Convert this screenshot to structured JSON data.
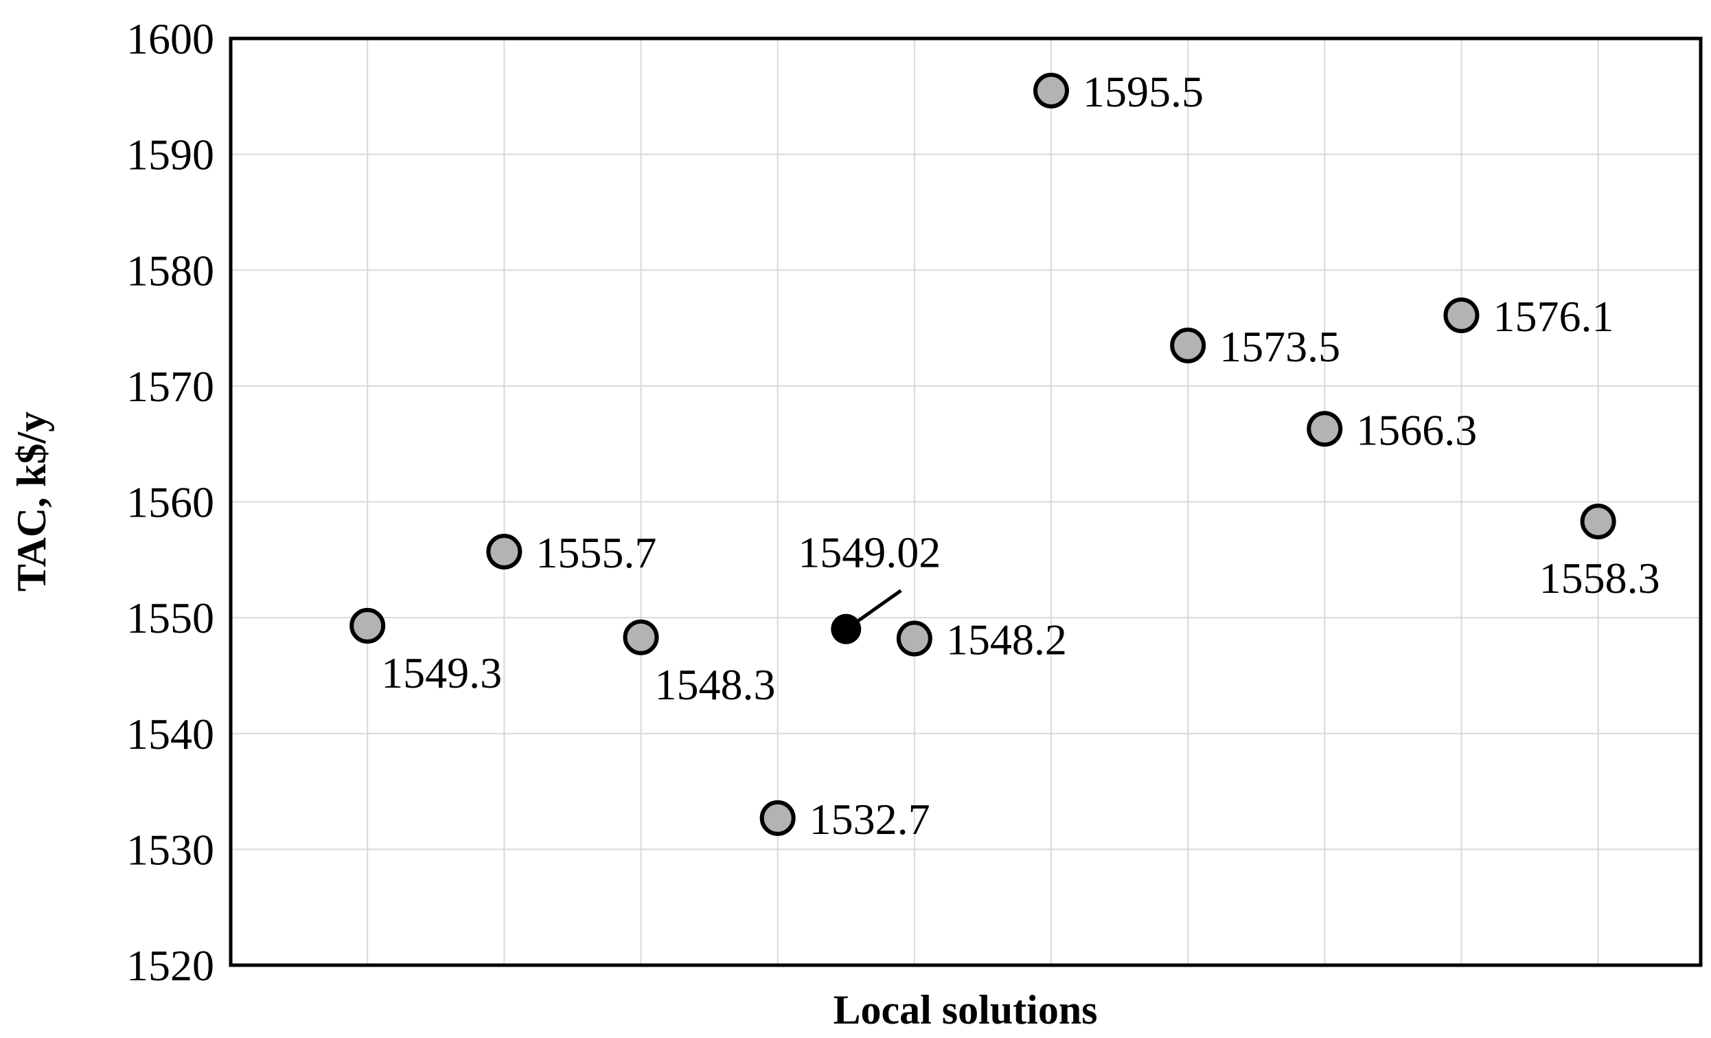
{
  "chart_data": {
    "type": "scatter",
    "title": "",
    "xlabel": "Local solutions",
    "ylabel": "TAC, k$/y",
    "ylim": [
      1520,
      1600
    ],
    "yticks": [
      1520,
      1530,
      1540,
      1550,
      1560,
      1570,
      1580,
      1590,
      1600
    ],
    "xlim": [
      0,
      10.75
    ],
    "grid": true,
    "legend": "none",
    "colors": {
      "local": "#b3b3b3",
      "best": "#000000",
      "edge": "#000000",
      "grid": "#d9d9d9"
    },
    "points": [
      {
        "x": 1,
        "y": 1549.3,
        "label": "1549.3",
        "label_pos": "below-right",
        "best": false
      },
      {
        "x": 2,
        "y": 1555.7,
        "label": "1555.7",
        "label_pos": "right",
        "best": false
      },
      {
        "x": 3,
        "y": 1548.3,
        "label": "1548.3",
        "label_pos": "below-right",
        "best": false
      },
      {
        "x": 4,
        "y": 1532.7,
        "label": "1532.7",
        "label_pos": "right",
        "best": false
      },
      {
        "x": 4.5,
        "y": 1549.02,
        "label": "1549.02",
        "label_pos": "callout-above",
        "best": true
      },
      {
        "x": 5,
        "y": 1548.2,
        "label": "1548.2",
        "label_pos": "right",
        "best": false
      },
      {
        "x": 6,
        "y": 1595.5,
        "label": "1595.5",
        "label_pos": "right",
        "best": false
      },
      {
        "x": 7,
        "y": 1573.5,
        "label": "1573.5",
        "label_pos": "right",
        "best": false
      },
      {
        "x": 8,
        "y": 1566.3,
        "label": "1566.3",
        "label_pos": "right",
        "best": false
      },
      {
        "x": 9,
        "y": 1576.1,
        "label": "1576.1",
        "label_pos": "right",
        "best": false
      },
      {
        "x": 10,
        "y": 1558.3,
        "label": "1558.3",
        "label_pos": "below",
        "best": false
      }
    ]
  }
}
